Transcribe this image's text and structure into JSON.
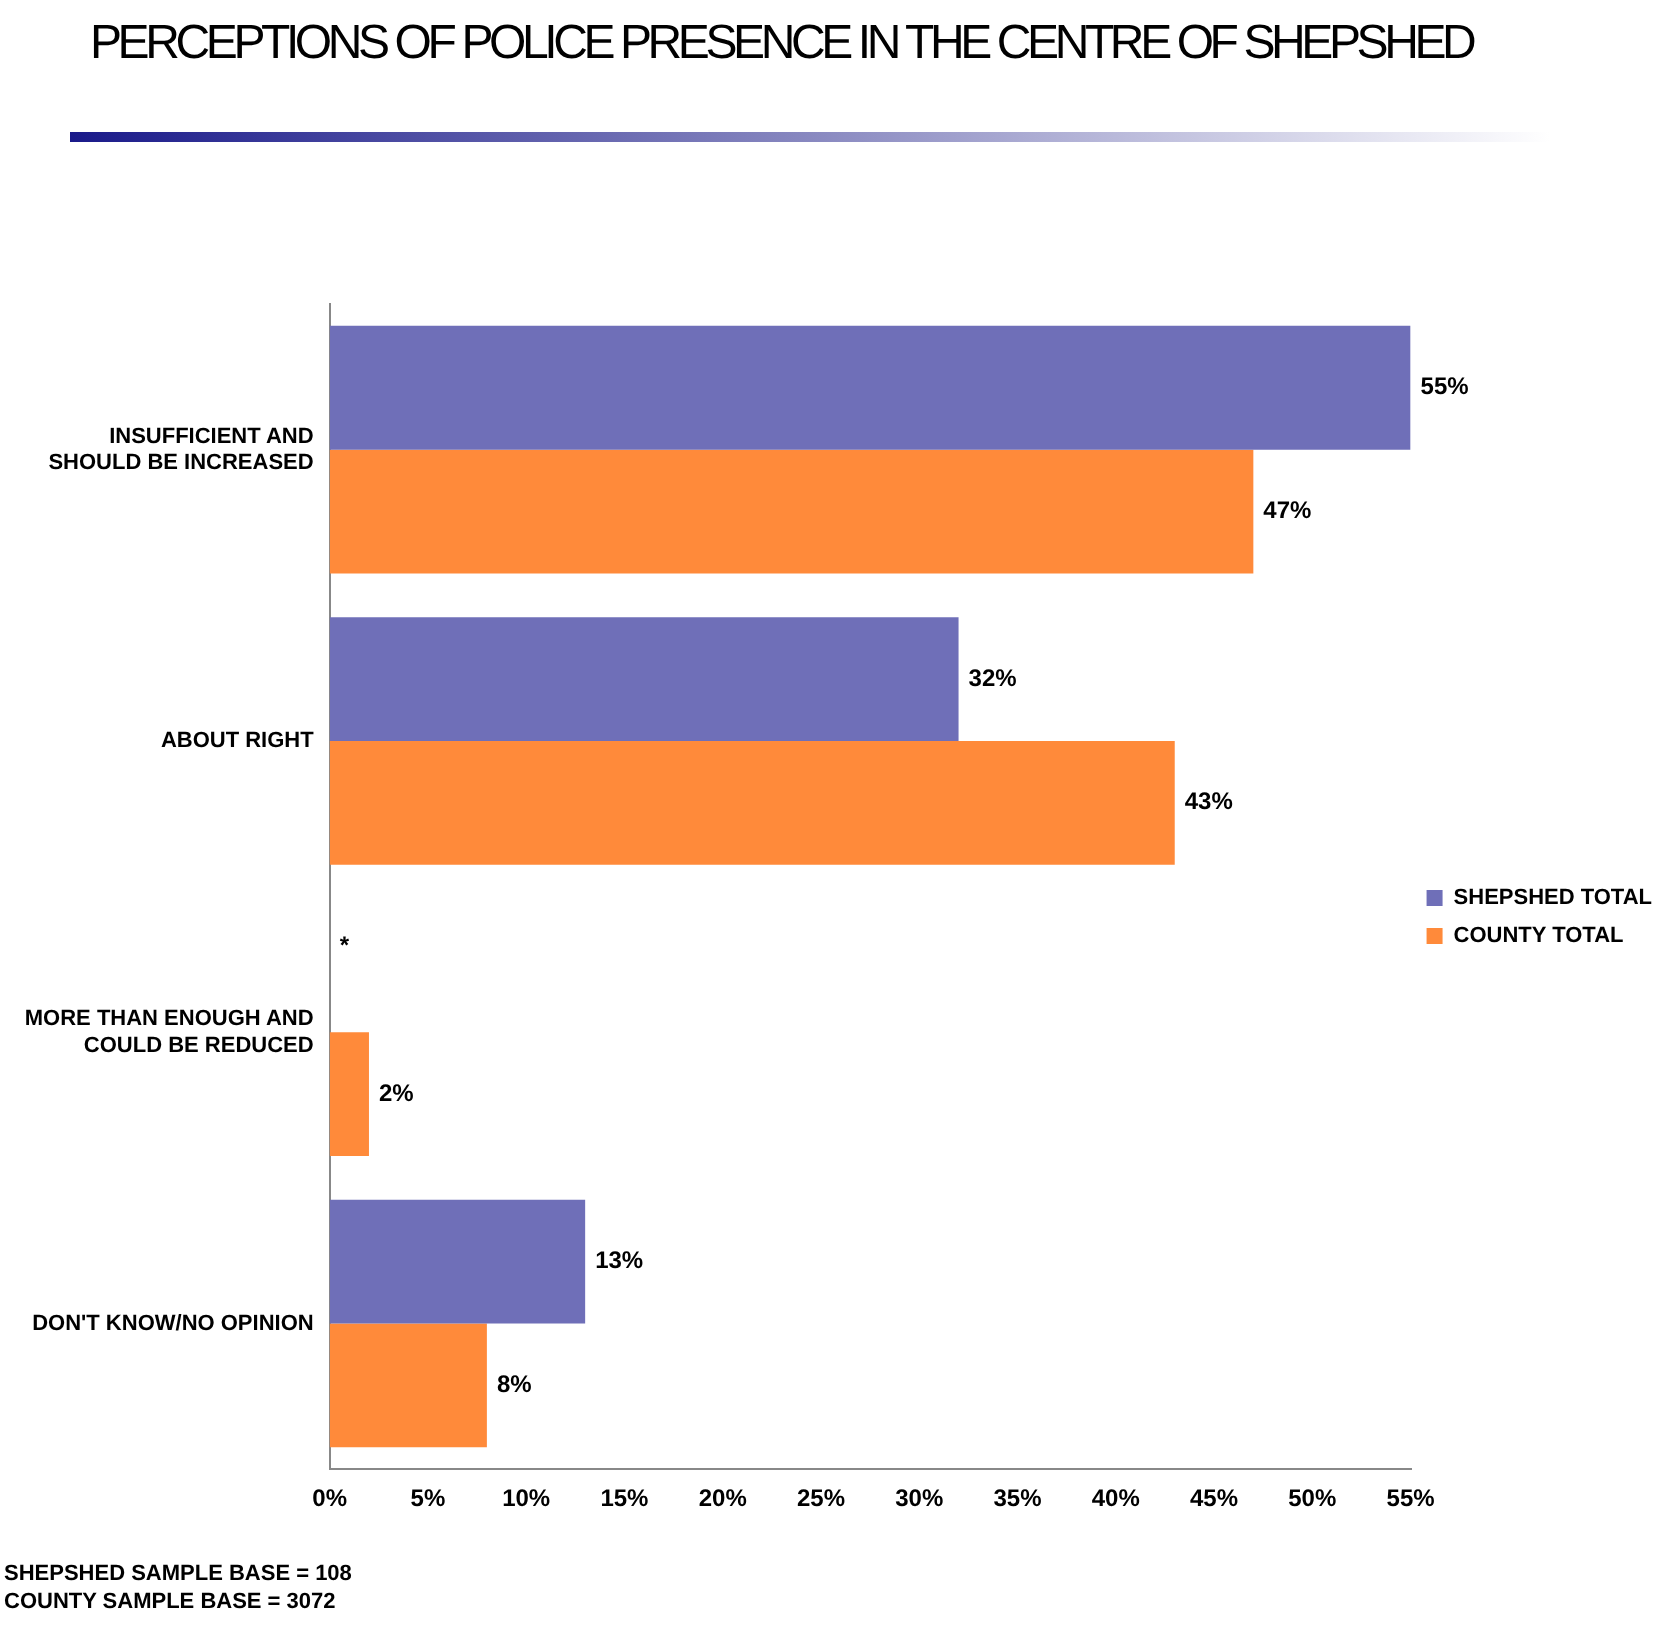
{
  "chart_data": {
    "type": "bar",
    "orientation": "horizontal",
    "title": "PERCEPTIONS OF POLICE PRESENCE IN THE CENTRE OF SHEPSHED",
    "categories": [
      "INSUFFICIENT AND SHOULD BE INCREASED",
      "ABOUT RIGHT",
      "MORE THAN ENOUGH AND COULD BE REDUCED",
      "DON'T KNOW/NO OPINION"
    ],
    "series": [
      {
        "name": "SHEPSHED TOTAL",
        "color": "#6f6fb8",
        "values": [
          55,
          32,
          null,
          13
        ],
        "value_labels": [
          "55%",
          "32%",
          "*",
          "13%"
        ]
      },
      {
        "name": "COUNTY TOTAL",
        "color": "#ff8a3a",
        "values": [
          47,
          43,
          2,
          8
        ],
        "value_labels": [
          "47%",
          "43%",
          "2%",
          "8%"
        ]
      }
    ],
    "xlim": [
      0,
      55
    ],
    "xticks": [
      {
        "value": 0,
        "label": "0%"
      },
      {
        "value": 5,
        "label": "5%"
      },
      {
        "value": 10,
        "label": "10%"
      },
      {
        "value": 15,
        "label": "15%"
      },
      {
        "value": 20,
        "label": "20%"
      },
      {
        "value": 25,
        "label": "25%"
      },
      {
        "value": 30,
        "label": "30%"
      },
      {
        "value": 35,
        "label": "35%"
      },
      {
        "value": 40,
        "label": "40%"
      },
      {
        "value": 45,
        "label": "45%"
      },
      {
        "value": 50,
        "label": "50%"
      },
      {
        "value": 55,
        "label": "55%"
      }
    ],
    "grid": false,
    "legend": "right",
    "annotations": [
      "SHEPSHED SAMPLE BASE = 108",
      "COUNTY SAMPLE BASE = 3072"
    ]
  }
}
